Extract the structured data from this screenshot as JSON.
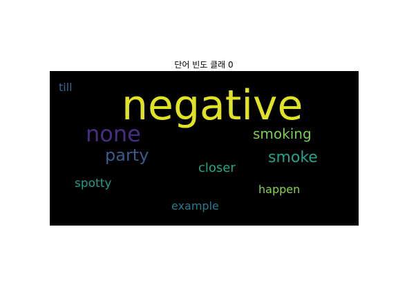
{
  "title": "단어 빈도 클래 0",
  "words": [
    {
      "text": "negative",
      "color": "#e0e322"
    },
    {
      "text": "none",
      "color": "#482e83"
    },
    {
      "text": "party",
      "color": "#3a5c8c"
    },
    {
      "text": "smoking",
      "color": "#7bcf4e"
    },
    {
      "text": "smoke",
      "color": "#26a38a"
    },
    {
      "text": "closer",
      "color": "#22a884"
    },
    {
      "text": "spotty",
      "color": "#1f9e89"
    },
    {
      "text": "happen",
      "color": "#86d549"
    },
    {
      "text": "example",
      "color": "#2a7b8e"
    },
    {
      "text": "till",
      "color": "#31688e"
    }
  ],
  "background_color": "#000000"
}
